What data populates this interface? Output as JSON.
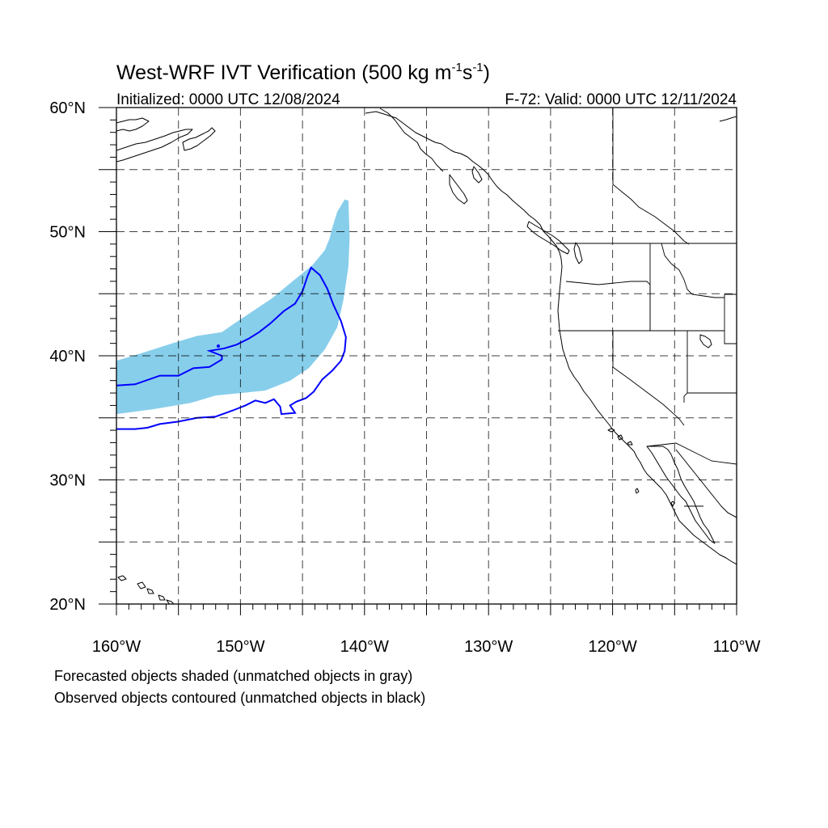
{
  "title": {
    "main": "West-WRF IVT Verification (500 kg m",
    "sup1": "-1",
    "mid": "s",
    "sup2": "-1",
    "close": ")"
  },
  "subtitle_left": "Initialized: 0000 UTC 12/08/2024",
  "subtitle_right": "F-72: Valid: 0000 UTC 12/11/2024",
  "axes": {
    "lon_ticks": [
      {
        "value": -160,
        "label": "160°W"
      },
      {
        "value": -150,
        "label": "150°W"
      },
      {
        "value": -140,
        "label": "140°W"
      },
      {
        "value": -130,
        "label": "130°W"
      },
      {
        "value": -120,
        "label": "120°W"
      },
      {
        "value": -110,
        "label": "110°W"
      }
    ],
    "lat_ticks": [
      {
        "value": 20,
        "label": "20°N"
      },
      {
        "value": 30,
        "label": "30°N"
      },
      {
        "value": 40,
        "label": "40°N"
      },
      {
        "value": 50,
        "label": "50°N"
      },
      {
        "value": 60,
        "label": "60°N"
      }
    ],
    "lon_range": [
      -160,
      -110
    ],
    "lat_range": [
      20,
      60
    ],
    "grid_interval_deg": 5,
    "grid": "dashed"
  },
  "legend": {
    "line1": "Forecasted objects shaded (unmatched objects in gray)",
    "line2": "Observed objects contoured (unmatched objects in black)"
  },
  "colors": {
    "forecast_fill": "#87ceeb",
    "observed_contour": "#0000ff",
    "coastline": "#000000"
  },
  "chart_data": {
    "type": "map",
    "projection": "cylindrical equidistant",
    "forecast_objects": [
      {
        "matched": true,
        "polygon": [
          [
            -160,
            39.5
          ],
          [
            -157,
            40.0
          ],
          [
            -154,
            41.0
          ],
          [
            -151.5,
            41.7
          ],
          [
            -150,
            42.2
          ],
          [
            -148,
            43.5
          ],
          [
            -146,
            44.8
          ],
          [
            -144,
            46.2
          ],
          [
            -142.5,
            47.3
          ],
          [
            -142.5,
            48.0
          ],
          [
            -141.7,
            49.0
          ],
          [
            -141.5,
            51.0
          ],
          [
            -141.2,
            52.3
          ],
          [
            -141.8,
            52.6
          ],
          [
            -142.5,
            52.0
          ],
          [
            -143.5,
            51.8
          ],
          [
            -144.0,
            50.5
          ],
          [
            -145.0,
            49.5
          ],
          [
            -145.5,
            48.5
          ],
          [
            -146.5,
            47.8
          ],
          [
            -148,
            46.5
          ],
          [
            -150,
            44.8
          ],
          [
            -151.5,
            43.2
          ],
          [
            -153.5,
            42.3
          ],
          [
            -155.5,
            42.0
          ],
          [
            -157.5,
            41.6
          ],
          [
            -160,
            41.4
          ]
        ],
        "polygon_note": "drawn as the band between lower and upper edges",
        "lower_edge": [
          [
            -160,
            35.3
          ],
          [
            -157,
            35.7
          ],
          [
            -154,
            36.2
          ],
          [
            -152,
            36.8
          ],
          [
            -150,
            37.0
          ],
          [
            -148,
            37.2
          ],
          [
            -146,
            38.0
          ],
          [
            -144.5,
            39.0
          ],
          [
            -143.2,
            40.5
          ],
          [
            -142.2,
            42.3
          ],
          [
            -141.7,
            44.5
          ],
          [
            -141.3,
            47.2
          ],
          [
            -141.2,
            49.5
          ],
          [
            -141.3,
            52.5
          ]
        ],
        "upper_edge": [
          [
            -160,
            39.6
          ],
          [
            -158,
            40.2
          ],
          [
            -155.5,
            41.0
          ],
          [
            -153.5,
            41.6
          ],
          [
            -151.5,
            41.9
          ],
          [
            -150.5,
            42.6
          ],
          [
            -149,
            43.6
          ],
          [
            -147.5,
            44.6
          ],
          [
            -145.8,
            46.0
          ],
          [
            -144.2,
            47.3
          ],
          [
            -143.2,
            48.5
          ],
          [
            -142.8,
            49.5
          ],
          [
            -142.6,
            50.3
          ],
          [
            -142.2,
            51.6
          ],
          [
            -141.6,
            52.6
          ]
        ]
      }
    ],
    "observed_objects": [
      {
        "matched": true,
        "contour": [
          [
            -160,
            37.6
          ],
          [
            -158.5,
            37.7
          ],
          [
            -156.5,
            38.4
          ],
          [
            -155,
            38.4
          ],
          [
            -153.8,
            39.0
          ],
          [
            -152.5,
            39.1
          ],
          [
            -151.5,
            39.7
          ],
          [
            -151.5,
            40.0
          ],
          [
            -152.5,
            40.4
          ],
          [
            -151.3,
            40.6
          ],
          [
            -150.3,
            40.9
          ],
          [
            -149.3,
            41.4
          ],
          [
            -148.5,
            41.9
          ],
          [
            -147.6,
            42.6
          ],
          [
            -146.5,
            43.6
          ],
          [
            -145.6,
            44.2
          ],
          [
            -145.0,
            45.2
          ],
          [
            -144.6,
            46.4
          ],
          [
            -144.3,
            47.1
          ],
          [
            -143.6,
            46.5
          ],
          [
            -143.0,
            45.4
          ],
          [
            -142.5,
            44.1
          ],
          [
            -141.9,
            42.8
          ],
          [
            -141.5,
            41.5
          ],
          [
            -141.6,
            40.4
          ],
          [
            -141.9,
            39.6
          ],
          [
            -142.6,
            38.8
          ],
          [
            -143.4,
            38.1
          ],
          [
            -144.1,
            37.1
          ],
          [
            -144.7,
            36.6
          ],
          [
            -145.5,
            36.3
          ],
          [
            -146.0,
            36.0
          ],
          [
            -145.6,
            35.4
          ],
          [
            -146.7,
            35.3
          ],
          [
            -146.8,
            35.9
          ],
          [
            -147.3,
            36.5
          ],
          [
            -148.0,
            36.2
          ],
          [
            -148.8,
            36.4
          ],
          [
            -149.6,
            36.0
          ],
          [
            -150.6,
            35.6
          ],
          [
            -152.0,
            35.1
          ],
          [
            -153.5,
            35.0
          ],
          [
            -155.0,
            34.7
          ],
          [
            -156.5,
            34.5
          ],
          [
            -157.5,
            34.2
          ],
          [
            -158.5,
            34.1
          ],
          [
            -160,
            34.1
          ]
        ]
      }
    ]
  }
}
